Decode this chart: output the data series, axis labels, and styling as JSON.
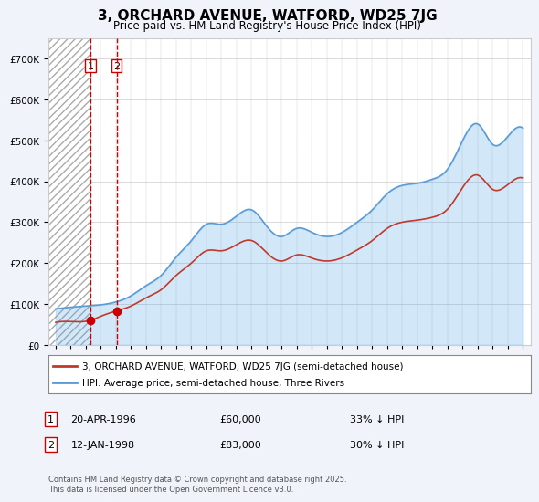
{
  "title": "3, ORCHARD AVENUE, WATFORD, WD25 7JG",
  "subtitle": "Price paid vs. HM Land Registry's House Price Index (HPI)",
  "ylabel": "",
  "bg_color": "#f0f4fa",
  "plot_bg": "#ffffff",
  "hatch_color": "#c8c8c8",
  "blue_fill": "#d0e4f7",
  "sale1_date": 1996.31,
  "sale2_date": 1998.04,
  "sale1_price": 60000,
  "sale2_price": 83000,
  "sale1_label": "20-APR-1996",
  "sale2_label": "12-JAN-1998",
  "sale1_hpi_pct": "33% ↓ HPI",
  "sale2_hpi_pct": "30% ↓ HPI",
  "legend_line1": "3, ORCHARD AVENUE, WATFORD, WD25 7JG (semi-detached house)",
  "legend_line2": "HPI: Average price, semi-detached house, Three Rivers",
  "footer": "Contains HM Land Registry data © Crown copyright and database right 2025.\nThis data is licensed under the Open Government Licence v3.0.",
  "ymax": 750000,
  "xmin": 1993.5,
  "xmax": 2025.5
}
